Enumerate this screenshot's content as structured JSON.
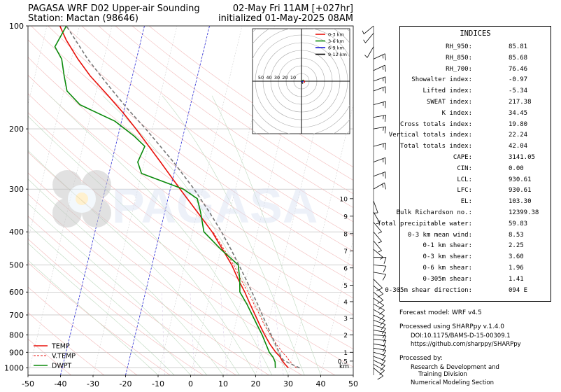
{
  "header": {
    "title_left_line1": "PAGASA WRF D02 Upper-air Sounding",
    "title_left_line2": "Station: Mactan (98646)",
    "title_right_line1": "02-May Fri 11AM [+027hr]",
    "title_right_line2": "initialized 01-May-2025 08AM"
  },
  "watermark": "PAGASA",
  "chart_data": {
    "type": "line",
    "subtype": "skew-t log-p sounding",
    "x_axis": {
      "label": "",
      "unit": "°C",
      "range": [
        -50,
        50
      ],
      "ticks": [
        -50,
        -40,
        -30,
        -20,
        -10,
        0,
        10,
        20,
        30,
        40,
        50
      ]
    },
    "y_axis": {
      "label": "",
      "unit": "hPa",
      "scale": "log",
      "range": [
        1000,
        100
      ],
      "ticks": [
        1000,
        900,
        800,
        700,
        600,
        500,
        400,
        300,
        200,
        100
      ]
    },
    "height_axis": {
      "unit_label": "km",
      "ticks": [
        "0.5",
        "1",
        "2",
        "3",
        "4",
        "5",
        "6",
        "7",
        "8",
        "9",
        "10"
      ],
      "pressures": [
        955,
        900,
        800,
        715,
        640,
        573,
        510,
        455,
        405,
        360,
        320
      ]
    },
    "legend": {
      "placement": "bottom-left",
      "entries": [
        {
          "label": "TEMP",
          "color": "#e8120c",
          "style": "solid"
        },
        {
          "label": "V.TEMP",
          "color": "#e8120c",
          "style": "dashed"
        },
        {
          "label": "DWPT",
          "color": "#0b8a0b",
          "style": "solid"
        }
      ]
    },
    "series": [
      {
        "name": "TEMP",
        "color": "#e8120c",
        "style": "solid",
        "points": [
          [
            1000,
            29.5
          ],
          [
            975,
            28.2
          ],
          [
            950,
            27
          ],
          [
            925,
            26
          ],
          [
            900,
            24.5
          ],
          [
            850,
            22
          ],
          [
            800,
            19.8
          ],
          [
            750,
            17.6
          ],
          [
            700,
            15.4
          ],
          [
            650,
            13
          ],
          [
            600,
            10.5
          ],
          [
            550,
            7.5
          ],
          [
            500,
            4.5
          ],
          [
            450,
            0.5
          ],
          [
            400,
            -4
          ],
          [
            350,
            -10
          ],
          [
            300,
            -17
          ],
          [
            250,
            -25
          ],
          [
            200,
            -35
          ],
          [
            180,
            -40
          ],
          [
            160,
            -46
          ],
          [
            140,
            -53
          ],
          [
            125,
            -58
          ],
          [
            110,
            -63
          ],
          [
            100,
            -66
          ]
        ]
      },
      {
        "name": "V.TEMP",
        "color": "#e8120c",
        "style": "dashed",
        "points": [
          [
            1000,
            32
          ],
          [
            975,
            30.5
          ],
          [
            950,
            29.2
          ],
          [
            925,
            28
          ],
          [
            900,
            26.5
          ],
          [
            850,
            24
          ],
          [
            800,
            21.5
          ],
          [
            750,
            19
          ],
          [
            700,
            16.8
          ],
          [
            650,
            14.2
          ],
          [
            600,
            11.5
          ],
          [
            550,
            8.3
          ],
          [
            500,
            5.1
          ],
          [
            450,
            1
          ],
          [
            400,
            -3.7
          ]
        ]
      },
      {
        "name": "DWPT",
        "color": "#0b8a0b",
        "style": "solid",
        "points": [
          [
            1000,
            25.5
          ],
          [
            960,
            25
          ],
          [
            930,
            24
          ],
          [
            900,
            22.5
          ],
          [
            850,
            20.8
          ],
          [
            800,
            19
          ],
          [
            750,
            16.8
          ],
          [
            700,
            14.5
          ],
          [
            650,
            12
          ],
          [
            600,
            9
          ],
          [
            550,
            8
          ],
          [
            500,
            6.5
          ],
          [
            450,
            0
          ],
          [
            400,
            -6.5
          ],
          [
            350,
            -9
          ],
          [
            320,
            -11
          ],
          [
            300,
            -16
          ],
          [
            270,
            -30
          ],
          [
            250,
            -32
          ],
          [
            225,
            -31
          ],
          [
            210,
            -35
          ],
          [
            190,
            -42
          ],
          [
            170,
            -54
          ],
          [
            155,
            -59
          ],
          [
            140,
            -61
          ],
          [
            125,
            -63
          ],
          [
            115,
            -66
          ],
          [
            100,
            -64
          ]
        ]
      },
      {
        "name": "parcel",
        "color": "#777777",
        "style": "dashed",
        "points": [
          [
            1000,
            33
          ],
          [
            975,
            30.2
          ],
          [
            950,
            27.5
          ],
          [
            930,
            26.5
          ],
          [
            900,
            25.5
          ],
          [
            850,
            23.7
          ],
          [
            800,
            21.8
          ],
          [
            750,
            19.8
          ],
          [
            700,
            17.6
          ],
          [
            650,
            15.3
          ],
          [
            600,
            12.7
          ],
          [
            550,
            9.9
          ],
          [
            500,
            6.7
          ],
          [
            450,
            3.1
          ],
          [
            400,
            -1.1
          ],
          [
            350,
            -6.3
          ],
          [
            300,
            -12.7
          ],
          [
            250,
            -21
          ],
          [
            200,
            -32
          ],
          [
            175,
            -39
          ],
          [
            150,
            -46.5
          ],
          [
            125,
            -55
          ],
          [
            100,
            -64
          ]
        ]
      }
    ],
    "wind_barbs": [
      {
        "p": 1000,
        "dir": 130,
        "kt": 10
      },
      {
        "p": 975,
        "dir": 120,
        "kt": 12
      },
      {
        "p": 950,
        "dir": 115,
        "kt": 12
      },
      {
        "p": 925,
        "dir": 110,
        "kt": 12
      },
      {
        "p": 900,
        "dir": 105,
        "kt": 10
      },
      {
        "p": 875,
        "dir": 100,
        "kt": 10
      },
      {
        "p": 850,
        "dir": 100,
        "kt": 10
      },
      {
        "p": 825,
        "dir": 95,
        "kt": 10
      },
      {
        "p": 800,
        "dir": 95,
        "kt": 10
      },
      {
        "p": 775,
        "dir": 100,
        "kt": 10
      },
      {
        "p": 750,
        "dir": 105,
        "kt": 10
      },
      {
        "p": 725,
        "dir": 110,
        "kt": 10
      },
      {
        "p": 700,
        "dir": 115,
        "kt": 10
      },
      {
        "p": 675,
        "dir": 120,
        "kt": 10
      },
      {
        "p": 650,
        "dir": 120,
        "kt": 10
      },
      {
        "p": 625,
        "dir": 125,
        "kt": 10
      },
      {
        "p": 600,
        "dir": 130,
        "kt": 10
      },
      {
        "p": 575,
        "dir": 130,
        "kt": 10
      },
      {
        "p": 550,
        "dir": 135,
        "kt": 10
      },
      {
        "p": 525,
        "dir": 100,
        "kt": 10
      },
      {
        "p": 500,
        "dir": 95,
        "kt": 10
      },
      {
        "p": 475,
        "dir": 90,
        "kt": 10
      },
      {
        "p": 450,
        "dir": 130,
        "kt": 5
      },
      {
        "p": 425,
        "dir": 140,
        "kt": 5
      },
      {
        "p": 400,
        "dir": 140,
        "kt": 5
      },
      {
        "p": 375,
        "dir": 140,
        "kt": 5
      },
      {
        "p": 350,
        "dir": 150,
        "kt": 5
      },
      {
        "p": 325,
        "dir": 160,
        "kt": 5
      },
      {
        "p": 300,
        "dir": 60,
        "kt": 15
      },
      {
        "p": 275,
        "dir": 70,
        "kt": 15
      },
      {
        "p": 250,
        "dir": 70,
        "kt": 15
      },
      {
        "p": 225,
        "dir": 75,
        "kt": 15
      },
      {
        "p": 200,
        "dir": 80,
        "kt": 15
      },
      {
        "p": 185,
        "dir": 80,
        "kt": 15
      },
      {
        "p": 170,
        "dir": 75,
        "kt": 15
      },
      {
        "p": 155,
        "dir": 70,
        "kt": 15
      },
      {
        "p": 145,
        "dir": 70,
        "kt": 15
      },
      {
        "p": 135,
        "dir": 65,
        "kt": 15
      },
      {
        "p": 125,
        "dir": 65,
        "kt": 15
      },
      {
        "p": 115,
        "dir": 210,
        "kt": 5
      },
      {
        "p": 105,
        "dir": 220,
        "kt": 5
      },
      {
        "p": 100,
        "dir": 230,
        "kt": 5
      }
    ],
    "hodograph": {
      "ring_labels": [
        "50",
        "40",
        "30",
        "20",
        "10"
      ],
      "legend": [
        {
          "label": "0-3 km",
          "color": "#e8120c"
        },
        {
          "label": "3-6 km",
          "color": "#0b8a0b"
        },
        {
          "label": "6-9 km",
          "color": "#1a1ad6"
        },
        {
          "label": "9-12 km",
          "color": "#000000"
        }
      ],
      "segments": [
        {
          "color": "#e8120c",
          "points": [
            [
              -6,
              -4
            ],
            [
              -8,
              -2
            ],
            [
              -7,
              1
            ],
            [
              -5,
              3
            ]
          ]
        },
        {
          "color": "#0b8a0b",
          "points": [
            [
              -5,
              3
            ],
            [
              -3,
              2
            ],
            [
              -5,
              0
            ]
          ]
        },
        {
          "color": "#1a1ad6",
          "points": [
            [
              -5,
              0
            ],
            [
              -2,
              -1
            ],
            [
              -1,
              -3
            ]
          ]
        },
        {
          "color": "#000000",
          "points": [
            [
              -1,
              -3
            ],
            [
              -3,
              -5
            ],
            [
              -4,
              -6
            ]
          ]
        }
      ]
    }
  },
  "indices": {
    "title": "INDICES",
    "rows": [
      {
        "label": "RH_950:",
        "value": "85.81"
      },
      {
        "label": "RH_850:",
        "value": "85.68"
      },
      {
        "label": "RH_700:",
        "value": "76.46"
      },
      {
        "label": "Showalter index:",
        "value": "-0.97"
      },
      {
        "label": "Lifted index:",
        "value": "-5.34"
      },
      {
        "label": "SWEAT index:",
        "value": "217.38"
      },
      {
        "label": "K index:",
        "value": "34.45"
      },
      {
        "label": "Cross totals index:",
        "value": "19.80"
      },
      {
        "label": "Vertical totals index:",
        "value": "22.24"
      },
      {
        "label": "Total totals index:",
        "value": "42.04"
      },
      {
        "label": "CAPE:",
        "value": "3141.05"
      },
      {
        "label": "CIN:",
        "value": "0.00"
      },
      {
        "label": "LCL:",
        "value": "930.61"
      },
      {
        "label": "LFC:",
        "value": "930.61"
      },
      {
        "label": "EL:",
        "value": "103.30"
      },
      {
        "label": "Bulk Richardson no.:",
        "value": "12399.38"
      },
      {
        "label": "Total precipitable water:",
        "value": "59.83"
      },
      {
        "label": "0-3 km mean wind:",
        "value": "8.53"
      },
      {
        "label": "0-1 km shear:",
        "value": "2.25"
      },
      {
        "label": "0-3 km shear:",
        "value": "3.60"
      },
      {
        "label": "0-6 km shear:",
        "value": "1.96"
      },
      {
        "label": "0-305m shear:",
        "value": "1.41"
      },
      {
        "label": "0-305m shear direction:",
        "value": "094 E"
      }
    ]
  },
  "footer": {
    "forecast_model": "Forecast model: WRF v4.5",
    "processed_using": "Processed using SHARPpy v.1.4.0",
    "doi": "DOI:10.1175/BAMS-D-15-00309.1",
    "url": "https://github.com/sharppy/SHARPpy",
    "processed_by": "Processed by:",
    "org_line1": "Research & Development and",
    "org_line2": "Training Division",
    "org_line3": "Numerical Modeling Section"
  }
}
